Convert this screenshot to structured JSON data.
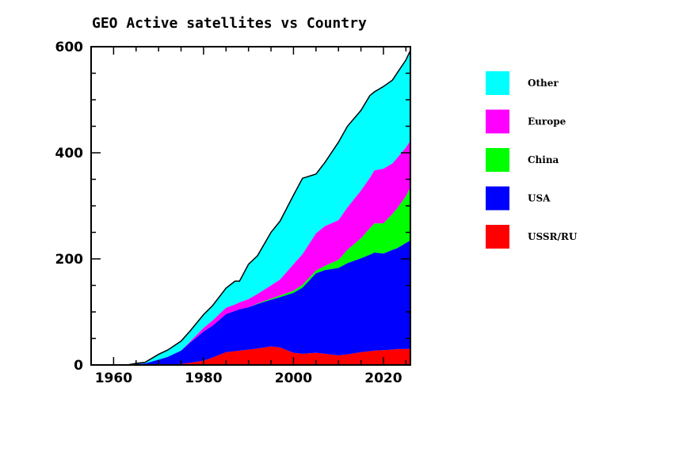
{
  "chart_data": {
    "type": "area",
    "stacked": true,
    "title": "GEO Active satellites vs Country",
    "xlabel": "",
    "ylabel": "",
    "xlim": [
      1955,
      2026
    ],
    "ylim": [
      0,
      600
    ],
    "x_ticks": [
      1960,
      1980,
      2000,
      2020
    ],
    "x_tick_labels": [
      "1960",
      "1980",
      "2000",
      "2020"
    ],
    "x_minor_step": 5,
    "y_ticks": [
      0,
      200,
      400,
      600
    ],
    "y_tick_labels": [
      "0",
      "200",
      "400",
      "600"
    ],
    "y_minor_step": 50,
    "grid": false,
    "legend_position": "right",
    "x": [
      1963,
      1965,
      1967,
      1970,
      1972,
      1975,
      1977,
      1980,
      1982,
      1985,
      1987,
      1988,
      1990,
      1992,
      1995,
      1997,
      2000,
      2002,
      2005,
      2007,
      2010,
      2012,
      2015,
      2017,
      2018,
      2020,
      2022,
      2023,
      2025,
      2026
    ],
    "series": [
      {
        "name": "USSR/RU",
        "color": "#ff0000",
        "values": [
          0,
          0,
          0,
          0,
          0,
          2,
          4,
          8,
          14,
          24,
          26,
          27,
          29,
          31,
          35,
          33,
          23,
          21,
          23,
          21,
          18,
          20,
          24,
          26,
          27,
          28,
          29,
          30,
          30,
          31
        ]
      },
      {
        "name": "USA",
        "color": "#0000ff",
        "values": [
          0,
          2,
          3,
          10,
          15,
          25,
          38,
          55,
          60,
          72,
          76,
          78,
          80,
          84,
          88,
          95,
          113,
          125,
          150,
          158,
          165,
          172,
          177,
          182,
          185,
          182,
          188,
          190,
          200,
          204
        ]
      },
      {
        "name": "China",
        "color": "#00ff00",
        "values": [
          0,
          0,
          0,
          0,
          0,
          0,
          0,
          0,
          0,
          0,
          0,
          0,
          0,
          1,
          2,
          3,
          4,
          5,
          5,
          8,
          15,
          25,
          38,
          50,
          55,
          57,
          68,
          75,
          88,
          100
        ]
      },
      {
        "name": "Europe",
        "color": "#ff00ff",
        "values": [
          0,
          0,
          0,
          0,
          0,
          0,
          2,
          7,
          10,
          12,
          12,
          13,
          15,
          18,
          25,
          30,
          50,
          58,
          70,
          75,
          75,
          80,
          90,
          95,
          100,
          103,
          95,
          95,
          92,
          88
        ]
      },
      {
        "name": "Other",
        "color": "#00ffff",
        "values": [
          0,
          1,
          2,
          10,
          13,
          18,
          20,
          25,
          28,
          37,
          44,
          40,
          66,
          72,
          100,
          110,
          130,
          143,
          112,
          120,
          147,
          153,
          151,
          155,
          148,
          155,
          157,
          160,
          165,
          170
        ]
      }
    ],
    "total_line_color": "#000000"
  }
}
